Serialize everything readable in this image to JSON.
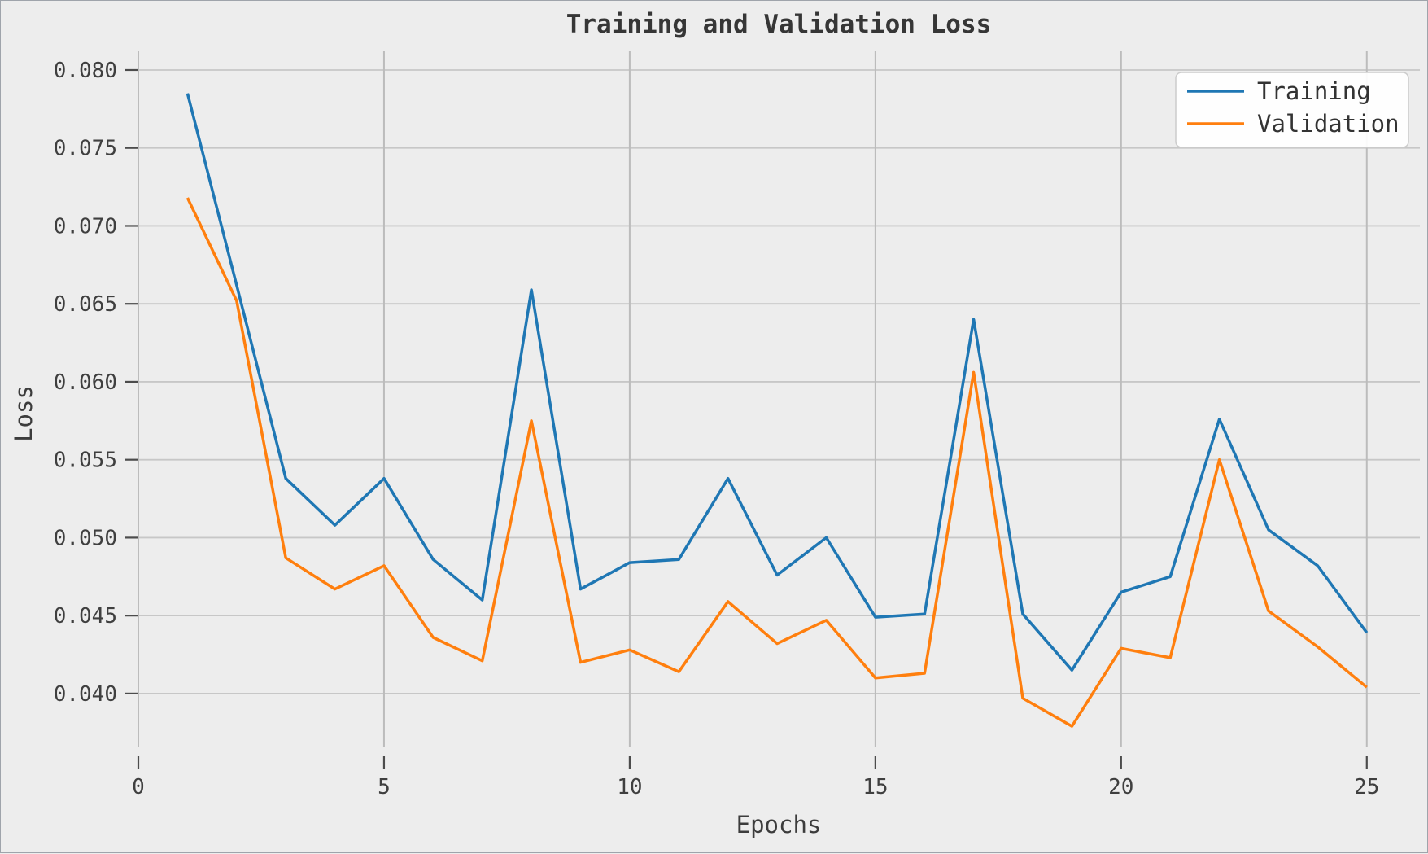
{
  "figure": {
    "background_color": "#ededed",
    "border_color": "#9fa4ab"
  },
  "style": {
    "grid_color_vertical": "#bcbcbc",
    "grid_color_horizontal": "#c7c7c7",
    "tick_color": "#4c4c4c",
    "tick_label_color": "#3f3f3f",
    "text_color": "#3c3c3c",
    "legend_background": "#ffffff",
    "legend_border": "#cccccc",
    "training_color": "#1f77b4",
    "validation_color": "#ff7f0e"
  },
  "chart_data": {
    "type": "line",
    "title": "Training and Validation Loss",
    "xlabel": "Epochs",
    "ylabel": "Loss",
    "grid": true,
    "legend_position": "upper right",
    "x": [
      1,
      2,
      3,
      4,
      5,
      6,
      7,
      8,
      9,
      10,
      11,
      12,
      13,
      14,
      15,
      16,
      17,
      18,
      19,
      20,
      21,
      22,
      23,
      24,
      25
    ],
    "series": [
      {
        "name": "Training",
        "color": "#1f77b4",
        "values": [
          0.0785,
          0.0662,
          0.0538,
          0.0508,
          0.0538,
          0.0486,
          0.046,
          0.0659,
          0.0467,
          0.0484,
          0.0486,
          0.0538,
          0.0476,
          0.05,
          0.0449,
          0.0451,
          0.064,
          0.0451,
          0.0415,
          0.0465,
          0.0475,
          0.0576,
          0.0505,
          0.0482,
          0.0439
        ]
      },
      {
        "name": "Validation",
        "color": "#ff7f0e",
        "values": [
          0.0718,
          0.0652,
          0.0487,
          0.0467,
          0.0482,
          0.0436,
          0.0421,
          0.0575,
          0.042,
          0.0428,
          0.0414,
          0.0459,
          0.0432,
          0.0447,
          0.041,
          0.0413,
          0.0606,
          0.0397,
          0.0379,
          0.0429,
          0.0423,
          0.055,
          0.0453,
          0.043,
          0.0404
        ]
      }
    ],
    "xlim": [
      0,
      26.08
    ],
    "ylim": [
      0.0366,
      0.0812
    ],
    "x_ticks": [
      0,
      5,
      10,
      15,
      20,
      25
    ],
    "x_tick_labels": [
      "0",
      "5",
      "10",
      "15",
      "20",
      "25"
    ],
    "y_ticks": [
      0.04,
      0.045,
      0.05,
      0.055,
      0.06,
      0.065,
      0.07,
      0.075,
      0.08
    ],
    "y_tick_labels": [
      "0.040",
      "0.045",
      "0.050",
      "0.055",
      "0.060",
      "0.065",
      "0.070",
      "0.075",
      "0.080"
    ],
    "legend_entries": [
      "Training",
      "Validation"
    ]
  }
}
